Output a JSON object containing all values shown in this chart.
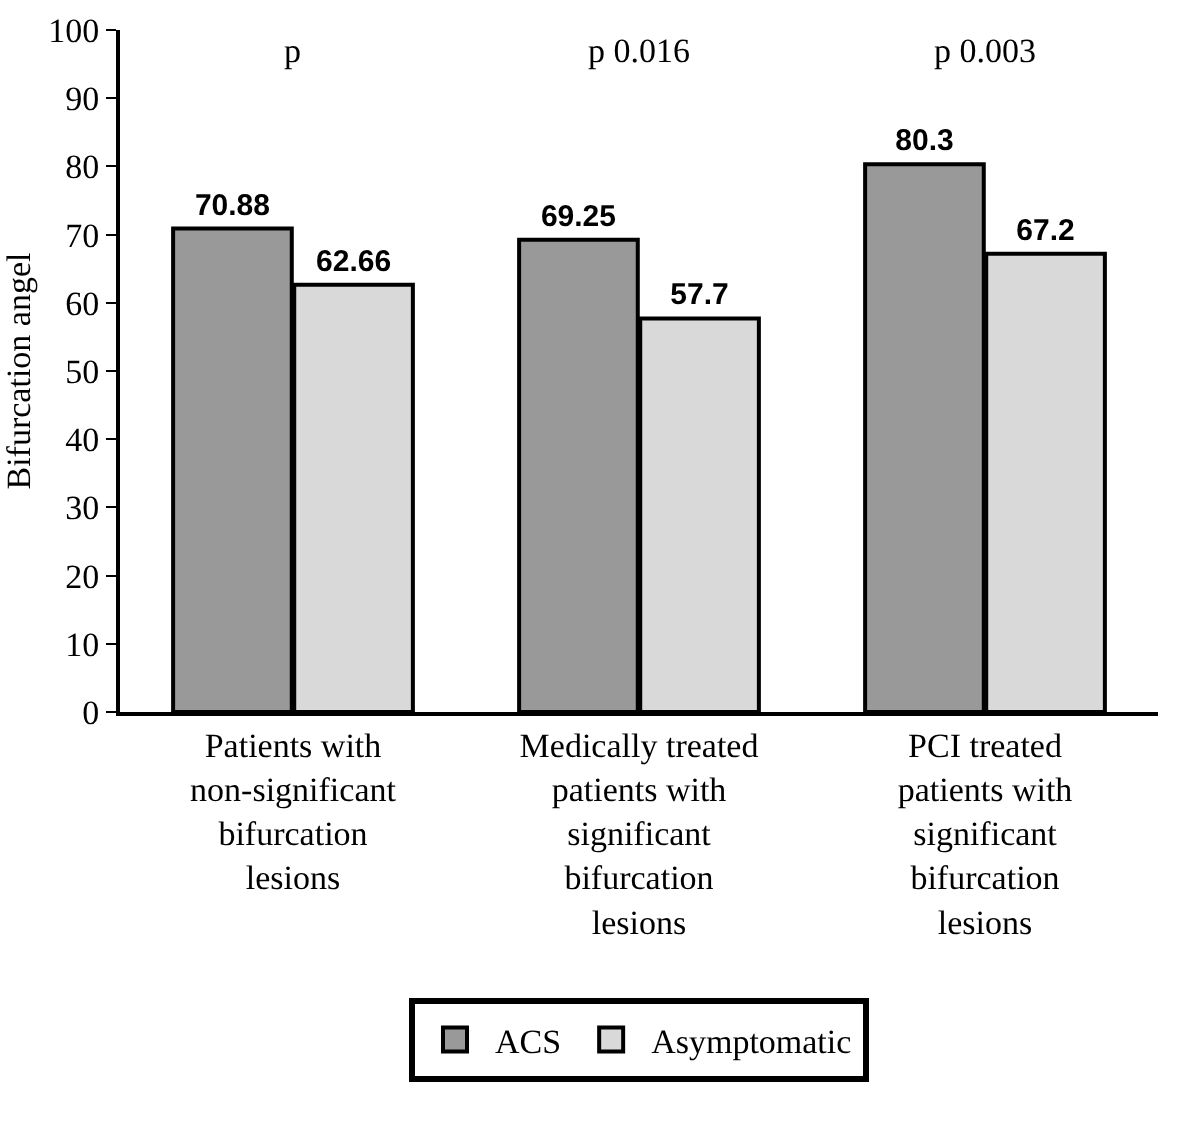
{
  "chart_data": {
    "type": "bar",
    "ylabel": "Bifurcation angel",
    "categories": [
      "Patients with non-significant bifurcation lesions",
      "Medically treated patients with significant bifurcation lesions",
      "PCI treated patients with significant bifurcation lesions"
    ],
    "series": [
      {
        "name": "ACS",
        "color": "#999999",
        "values": [
          70.88,
          69.25,
          80.3
        ]
      },
      {
        "name": "Asymptomatic",
        "color": "#d9d9d9",
        "values": [
          62.66,
          57.7,
          67.2
        ]
      }
    ],
    "ylim": [
      0,
      100
    ],
    "yticks": [
      0,
      10,
      20,
      30,
      40,
      50,
      60,
      70,
      80,
      90,
      100
    ],
    "grid": false,
    "legend": "bottom",
    "data_labels": true,
    "annotations": [
      "p",
      "p 0.016",
      "p 0.003"
    ]
  }
}
